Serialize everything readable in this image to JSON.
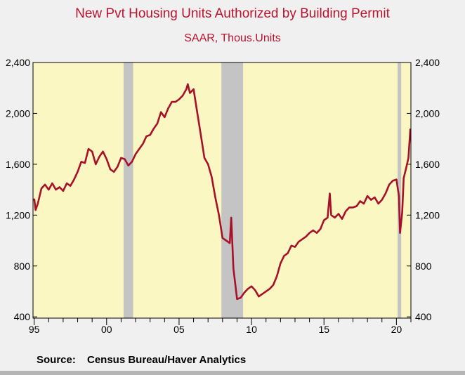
{
  "chart_data": {
    "type": "line",
    "title": "New Pvt Housing Units Authorized by Building Permit",
    "subtitle": "SAAR, Thous.Units",
    "source_label": "Source:",
    "source_text": "Census Bureau/Haver Analytics",
    "x_tick_labels": [
      "95",
      "00",
      "05",
      "10",
      "15",
      "20"
    ],
    "x_tick_years": [
      1995,
      2000,
      2005,
      2010,
      2015,
      2020
    ],
    "y_tick_labels": [
      "400",
      "800",
      "1,200",
      "1,600",
      "2,000",
      "2,400"
    ],
    "y_tick_values": [
      400,
      800,
      1200,
      1600,
      2000,
      2400
    ],
    "xlim": [
      1994.92,
      2021.0
    ],
    "ylim": [
      390,
      2400
    ],
    "y_axes": "both",
    "grid": false,
    "recessions": [
      [
        2001.17,
        2001.83
      ],
      [
        2007.92,
        2009.42
      ],
      [
        2020.08,
        2020.33
      ]
    ],
    "colors": {
      "line": "#a8102a",
      "plot_bg": "#fbf7c2",
      "recession": "#c4c4c4",
      "title": "#b8142f"
    },
    "series": [
      {
        "x": [
          1995.0,
          1995.1,
          1995.25,
          1995.5,
          1995.75,
          1996.0,
          1996.25,
          1996.5,
          1996.75,
          1997.0,
          1997.25,
          1997.5,
          1997.75,
          1998.0,
          1998.25,
          1998.5,
          1998.75,
          1999.0,
          1999.25,
          1999.5,
          1999.75,
          2000.0,
          2000.25,
          2000.5,
          2000.75,
          2001.0,
          2001.25,
          2001.5,
          2001.75,
          2002.0,
          2002.25,
          2002.5,
          2002.75,
          2003.0,
          2003.25,
          2003.5,
          2003.75,
          2004.0,
          2004.25,
          2004.5,
          2004.75,
          2005.0,
          2005.25,
          2005.5,
          2005.6,
          2005.75,
          2006.0,
          2006.25,
          2006.5,
          2006.75,
          2007.0,
          2007.25,
          2007.5,
          2007.75,
          2008.0,
          2008.25,
          2008.5,
          2008.6,
          2008.75,
          2009.0,
          2009.25,
          2009.5,
          2009.75,
          2010.0,
          2010.25,
          2010.5,
          2010.75,
          2011.0,
          2011.25,
          2011.5,
          2011.75,
          2012.0,
          2012.25,
          2012.5,
          2012.75,
          2013.0,
          2013.25,
          2013.5,
          2013.75,
          2014.0,
          2014.25,
          2014.5,
          2014.75,
          2015.0,
          2015.25,
          2015.4,
          2015.5,
          2015.75,
          2016.0,
          2016.25,
          2016.5,
          2016.75,
          2017.0,
          2017.25,
          2017.5,
          2017.75,
          2018.0,
          2018.25,
          2018.5,
          2018.75,
          2019.0,
          2019.25,
          2019.5,
          2019.75,
          2020.0,
          2020.17,
          2020.25,
          2020.4,
          2020.5,
          2020.67,
          2020.83,
          2020.96
        ],
        "values": [
          1330,
          1240,
          1290,
          1410,
          1440,
          1400,
          1450,
          1400,
          1420,
          1390,
          1450,
          1430,
          1480,
          1540,
          1620,
          1610,
          1720,
          1700,
          1600,
          1660,
          1700,
          1640,
          1560,
          1540,
          1580,
          1650,
          1640,
          1590,
          1620,
          1680,
          1720,
          1760,
          1820,
          1830,
          1880,
          1920,
          2010,
          1970,
          2040,
          2090,
          2090,
          2110,
          2140,
          2190,
          2230,
          2160,
          2190,
          2010,
          1830,
          1650,
          1600,
          1500,
          1340,
          1200,
          1020,
          1000,
          980,
          1180,
          780,
          540,
          550,
          590,
          620,
          640,
          610,
          560,
          580,
          600,
          620,
          650,
          720,
          820,
          880,
          900,
          960,
          950,
          990,
          1010,
          1030,
          1060,
          1080,
          1060,
          1090,
          1160,
          1180,
          1370,
          1200,
          1180,
          1210,
          1170,
          1230,
          1260,
          1260,
          1270,
          1310,
          1290,
          1350,
          1320,
          1340,
          1290,
          1320,
          1370,
          1440,
          1470,
          1480,
          1350,
          1060,
          1220,
          1490,
          1570,
          1650,
          1880
        ]
      }
    ]
  }
}
